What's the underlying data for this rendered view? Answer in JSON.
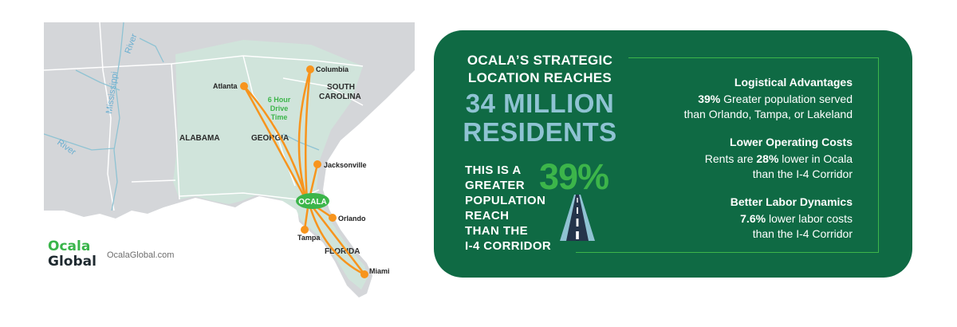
{
  "map": {
    "rivers": [
      "Mississippi",
      "River",
      "River"
    ],
    "states": [
      "ALABAMA",
      "GEORGIA",
      "SOUTH",
      "CAROLINA",
      "FLORIDA"
    ],
    "cities": [
      "Atlanta",
      "Columbia",
      "Jacksonville",
      "Orlando",
      "Tampa",
      "Miami"
    ],
    "hub": "OCALA",
    "drive_time": [
      "6 Hour",
      "Drive",
      "Time"
    ]
  },
  "brand": {
    "name_line1": "Ocala",
    "name_line2": "Global",
    "website": "OcalaGlobal.com"
  },
  "panel": {
    "headline_line1": "OCALA’S STRATEGIC",
    "headline_line2": "LOCATION REACHES",
    "big_line1": "34 MILLION",
    "big_line2": "RESIDENTS",
    "reach_lines": [
      "THIS IS A",
      "GREATER",
      "POPULATION",
      "REACH",
      "THAN THE",
      "I-4 CORRIDOR"
    ],
    "reach_percent": "39%",
    "advantages": [
      {
        "title": "Logistical Advantages",
        "strong": "39%",
        "line1_rest": " Greater population served",
        "line2": "than Orlando, Tampa, or Lakeland"
      },
      {
        "title": "Lower Operating Costs",
        "line1_pre": "Rents are ",
        "strong": "28%",
        "line1_post": " lower in Ocala",
        "line2": "than the I-4 Corridor"
      },
      {
        "title": "Better Labor Dynamics",
        "strong": "7.6%",
        "line1_rest": " lower labor costs",
        "line2": "than the I-4 Corridor"
      }
    ]
  },
  "colors": {
    "panel_green": "#0f6a44",
    "accent_green": "#3cb54a",
    "route_orange": "#f7941d",
    "light_blue": "#8fc3d3",
    "map_land": "#d4d6d9",
    "region_fill": "#cfe6da"
  }
}
